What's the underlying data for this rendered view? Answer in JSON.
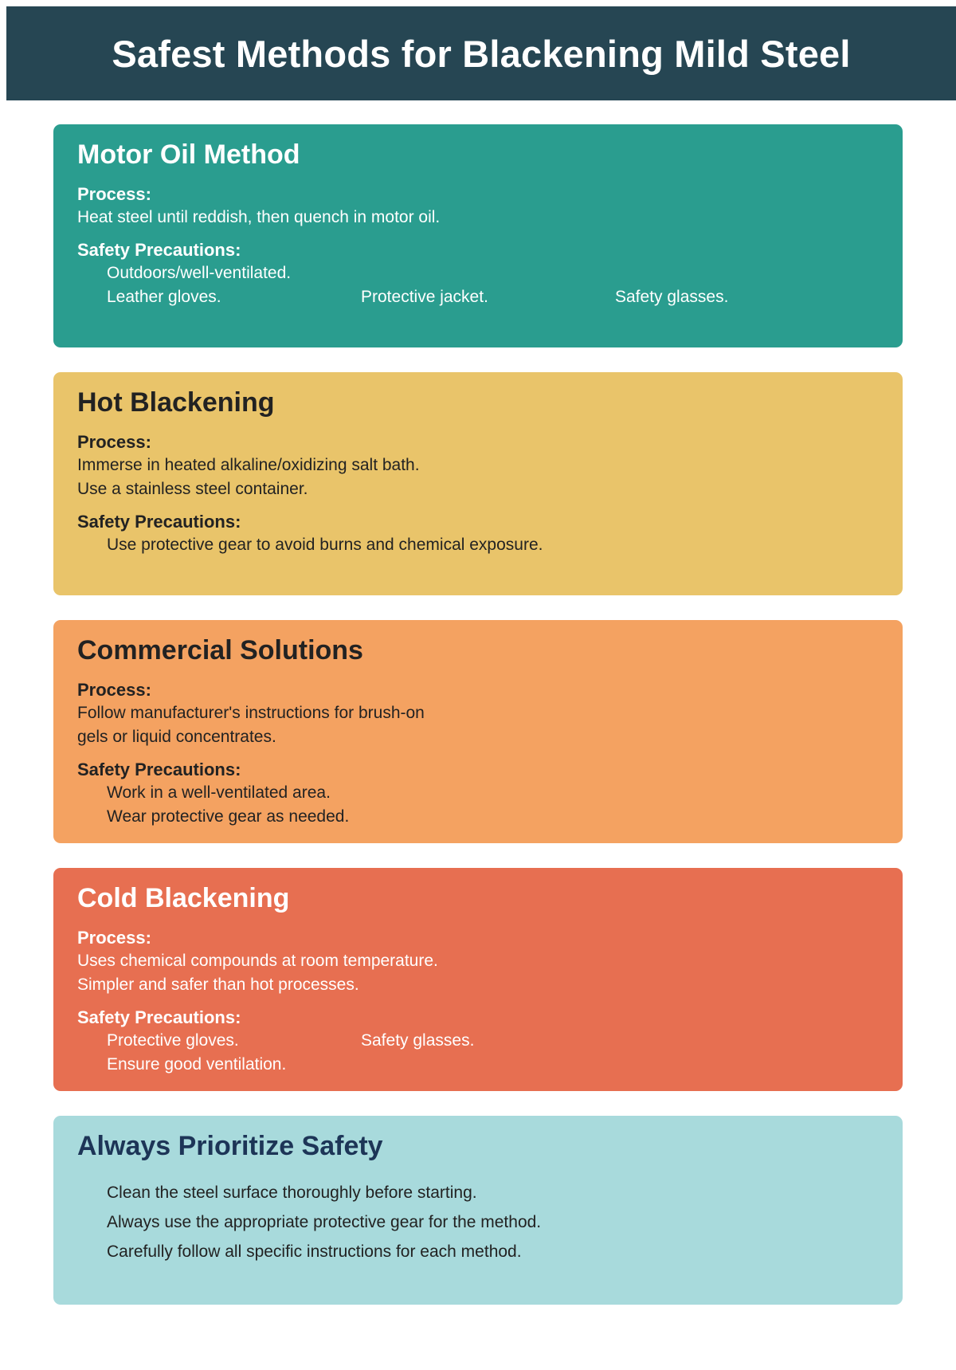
{
  "title": "Safest Methods for Blackening Mild Steel",
  "methods": [
    {
      "name": "Motor Oil Method",
      "process_label": "Process:",
      "process_lines": [
        "Heat steel until reddish, then quench in motor oil."
      ],
      "safety_label": "Safety Precautions:",
      "safety_rows": [
        [
          "Outdoors/well-ventilated."
        ],
        [
          "Leather gloves.",
          "Protective jacket.",
          "Safety glasses."
        ]
      ]
    },
    {
      "name": "Hot Blackening",
      "process_label": "Process:",
      "process_lines": [
        "Immerse in heated alkaline/oxidizing salt bath.",
        "Use a stainless steel container."
      ],
      "safety_label": "Safety Precautions:",
      "safety_rows": [
        [
          "Use protective gear to avoid burns and chemical exposure."
        ]
      ]
    },
    {
      "name": "Commercial Solutions",
      "process_label": "Process:",
      "process_lines": [
        "Follow manufacturer's instructions for brush-on",
        "gels or liquid concentrates."
      ],
      "safety_label": "Safety Precautions:",
      "safety_rows": [
        [
          "Work in a well-ventilated area."
        ],
        [
          "Wear protective gear as needed."
        ]
      ]
    },
    {
      "name": "Cold Blackening",
      "process_label": "Process:",
      "process_lines": [
        "Uses chemical compounds at room temperature.",
        "Simpler and safer than hot processes."
      ],
      "safety_label": "Safety Precautions:",
      "safety_rows": [
        [
          "Protective gloves.",
          "Safety glasses."
        ],
        [
          "Ensure good ventilation."
        ]
      ]
    }
  ],
  "always_safety": {
    "title": "Always Prioritize Safety",
    "items": [
      "Clean the steel surface thoroughly before starting.",
      "Always use the appropriate protective gear for the method.",
      "Carefully follow all specific instructions for each method."
    ]
  },
  "colors": {
    "header": "#264653",
    "motor_oil": "#2a9d8f",
    "hot_blackening": "#e9c46a",
    "commercial": "#f4a261",
    "cold_blackening": "#e76f51",
    "always_safety": "#a8dadc"
  }
}
